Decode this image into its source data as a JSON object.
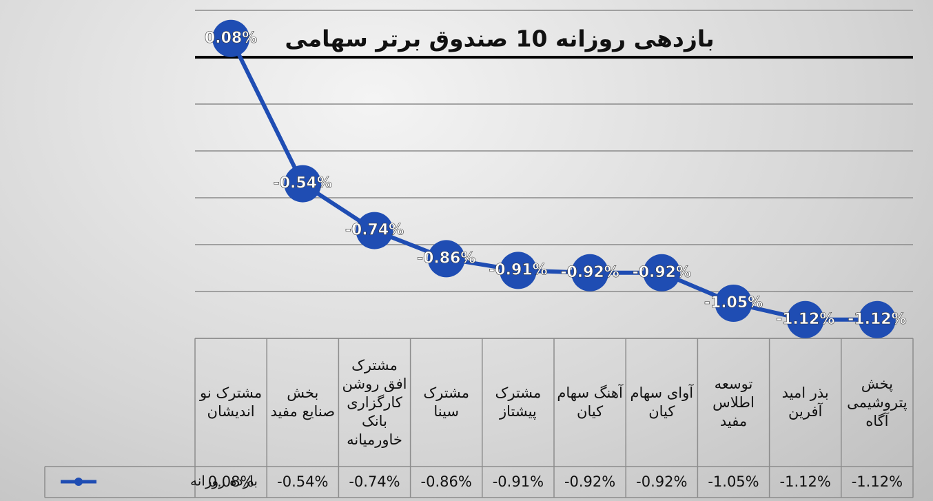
{
  "chart_data": {
    "type": "line",
    "title": "بازدهی روزانه 10 صندوق برتر سهامی",
    "categories": [
      "مشترک نو اندیشان",
      "بخش صنایع مفید",
      "مشترک افق روشن کارگزاری بانک خاورمیانه",
      "مشترک سینا",
      "مشترک پیشتاز",
      "آهنگ سهام کیان",
      "آوای سهام کیان",
      "توسعه اطلاس مفید",
      "بذر امید آفرین",
      "پخش پتروشیمی آگاه"
    ],
    "series": [
      {
        "name": "بازده روزانه",
        "color": "#1f4db3",
        "values": [
          0.08,
          -0.54,
          -0.74,
          -0.86,
          -0.91,
          -0.92,
          -0.92,
          -1.05,
          -1.12,
          -1.12
        ],
        "value_labels": [
          "0.08%",
          "-0.54%",
          "-0.74%",
          "-0.86%",
          "-0.91%",
          "-0.92%",
          "-0.92%",
          "-1.05%",
          "-1.12%",
          "-1.12%"
        ]
      }
    ],
    "ylim": [
      -1.2,
      0.2
    ],
    "yticks": [
      -1.2,
      -1.0,
      -0.8,
      -0.6,
      -0.4,
      -0.2,
      0,
      0.2
    ],
    "grid": true,
    "data_table": true
  }
}
